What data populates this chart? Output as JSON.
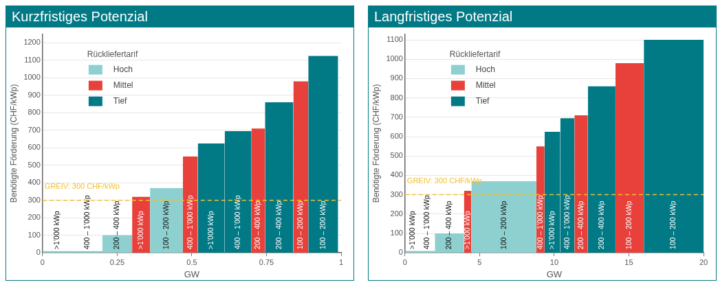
{
  "chart_data": [
    {
      "type": "histogram",
      "title": "Kurzfristiges Potenzial",
      "xlabel": "GW",
      "ylabel": "Benötigte Förderung (CHF/kWp)",
      "legend_title": "Rückliefertarif",
      "legend": "top left",
      "grid": "y",
      "bins": [
        0,
        0.1,
        0.2,
        0.3,
        0.36,
        0.47,
        0.52,
        0.61,
        0.7,
        0.745,
        0.84,
        0.89,
        0.99
      ],
      "categories": [
        ">1’000 kWp",
        "400 – 1’000 kWp",
        "200 – 400 kWp",
        ">1’000 kWp",
        "100 – 200 kWp",
        "400 – 1’000 kWp",
        ">1’000 kWp",
        "400 – 1’000 kWp",
        "200 – 400 kWp",
        "200 – 400 kWp",
        "100 – 200 kWp",
        "100 – 200 kWp"
      ],
      "series": [
        {
          "name": "Hoch",
          "color": "#8ecfcf",
          "values": [
            10,
            10,
            100,
            null,
            370,
            null,
            null,
            null,
            null,
            null,
            null,
            null
          ]
        },
        {
          "name": "Mittel",
          "color": "#e8403a",
          "values": [
            null,
            null,
            null,
            320,
            null,
            550,
            null,
            null,
            710,
            null,
            980,
            null
          ]
        },
        {
          "name": "Tief",
          "color": "#017a85",
          "values": [
            null,
            null,
            null,
            null,
            null,
            null,
            625,
            695,
            null,
            860,
            null,
            1125
          ]
        }
      ],
      "xlim": [
        0,
        1
      ],
      "xticks": [
        0,
        0.25,
        0.5,
        0.75,
        1
      ],
      "ylim": [
        0,
        1250
      ],
      "yticks": [
        0,
        100,
        200,
        300,
        400,
        500,
        600,
        700,
        800,
        900,
        1000,
        1100,
        1200
      ],
      "ref_lines": [
        {
          "axis": "y",
          "value": 300,
          "label": "GREIV: 300 CHF/kWp",
          "color": "#f2c12e",
          "line_style": "dashed"
        }
      ]
    },
    {
      "type": "histogram",
      "title": "Langfristiges Potenzial",
      "xlabel": "GW",
      "ylabel": "Benötigte Förderung (CHF/kWp)",
      "legend_title": "Rückliefertarif",
      "legend": "top left",
      "grid": "y",
      "bins": [
        0,
        1,
        2,
        3.95,
        4.45,
        8.8,
        9.35,
        10.4,
        11.35,
        12.25,
        14.1,
        16,
        20
      ],
      "categories": [
        ">1’000 kWp",
        "400 – 1’000 kWp",
        "200 – 400 kWp",
        ">1’000 kWp",
        "100 – 200 kWp",
        "400 – 1’000 kWp",
        ">1’000 kWp",
        "400 – 1’000 kWp",
        "200 – 400 kWp",
        "200 – 400 kWp",
        "100 – 200 kWp",
        "100 – 200 kWp"
      ],
      "series": [
        {
          "name": "Hoch",
          "color": "#8ecfcf",
          "values": [
            10,
            10,
            100,
            null,
            370,
            null,
            null,
            null,
            null,
            null,
            null,
            null
          ]
        },
        {
          "name": "Mittel",
          "color": "#e8403a",
          "values": [
            null,
            null,
            null,
            320,
            null,
            550,
            null,
            null,
            710,
            null,
            980,
            null
          ]
        },
        {
          "name": "Tief",
          "color": "#017a85",
          "values": [
            null,
            null,
            null,
            null,
            null,
            null,
            625,
            695,
            null,
            860,
            null,
            1100
          ]
        }
      ],
      "xlim": [
        0,
        20
      ],
      "xticks": [
        0,
        5,
        10,
        15,
        20
      ],
      "ylim": [
        0,
        1130
      ],
      "yticks": [
        0,
        100,
        200,
        300,
        400,
        500,
        600,
        700,
        800,
        900,
        1000,
        1100
      ],
      "ref_lines": [
        {
          "axis": "y",
          "value": 300,
          "label": "GREIV: 300 CHF/kWp",
          "color": "#f2c12e",
          "line_style": "dashed"
        }
      ]
    }
  ]
}
